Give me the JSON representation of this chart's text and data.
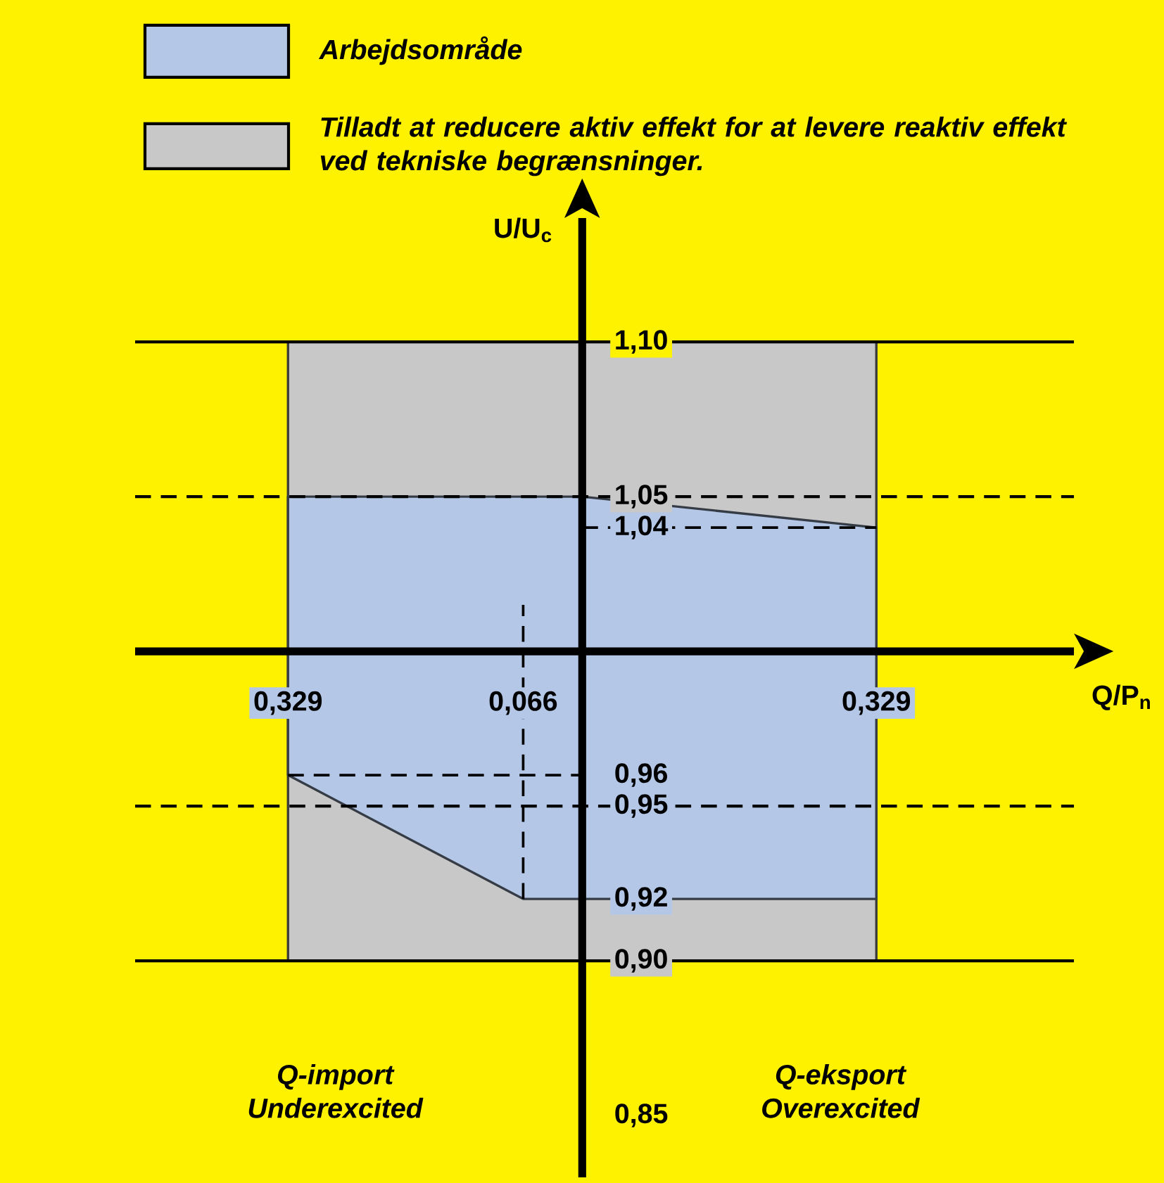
{
  "chart_data": {
    "type": "area",
    "xlabel": "Q/P$_{n}$",
    "ylabel": "U/U$_{c}$",
    "xlim": [
      -0.5,
      0.55
    ],
    "ylim": [
      0.83,
      1.14
    ],
    "xticks": [
      {
        "value": -0.329,
        "label": "0,329"
      },
      {
        "value": -0.066,
        "label": "0,066"
      },
      {
        "value": 0.329,
        "label": "0,329"
      }
    ],
    "yticks": [
      {
        "value": 0.85,
        "label": "0,85"
      },
      {
        "value": 0.9,
        "label": "0,90"
      },
      {
        "value": 0.92,
        "label": "0,92"
      },
      {
        "value": 0.95,
        "label": "0,95"
      },
      {
        "value": 0.96,
        "label": "0,96"
      },
      {
        "value": 1.04,
        "label": "1,04"
      },
      {
        "value": 1.05,
        "label": "1,05"
      },
      {
        "value": 1.1,
        "label": "1,10"
      }
    ],
    "series": [
      {
        "name": "Arbejdsområde",
        "color": "#b4c7e7",
        "x": [
          -0.329,
          0,
          0.329,
          0.329,
          -0.066,
          -0.329
        ],
        "values": [
          1.05,
          1.05,
          1.04,
          0.92,
          0.92,
          0.96
        ]
      },
      {
        "name": "Tilladt at reducere aktiv effekt for at levere reaktiv effekt ved tekniske begrænsninger.",
        "color": "#c8c8c8",
        "x": [
          -0.329,
          0.329,
          0.329,
          -0.329
        ],
        "values": [
          1.1,
          1.1,
          0.9,
          0.9
        ]
      },
      {
        "type": "line",
        "color": "#000000",
        "line_style": "dashed",
        "x": [
          0,
          0.329
        ],
        "values": [
          1.04,
          1.04
        ]
      },
      {
        "type": "line",
        "color": "#000000",
        "line_style": "dashed",
        "x": [
          -0.329,
          0
        ],
        "values": [
          0.96,
          0.96
        ]
      },
      {
        "type": "line",
        "color": "#000000",
        "line_style": "dashed",
        "x": [
          -0.066,
          -0.066
        ],
        "values": [
          0.92,
          1.015
        ]
      }
    ],
    "ref_lines": [
      {
        "axis": "y",
        "value": 1.1,
        "color": "#000000",
        "line_style": "solid"
      },
      {
        "axis": "y",
        "value": 1.05,
        "color": "#000000",
        "line_style": "dashed"
      },
      {
        "axis": "y",
        "value": 1.0,
        "color": "#000000",
        "line_style": "solid"
      },
      {
        "axis": "y",
        "value": 0.95,
        "color": "#000000",
        "line_style": "dashed"
      },
      {
        "axis": "y",
        "value": 0.9,
        "color": "#000000",
        "line_style": "solid"
      }
    ],
    "annotations": [
      "Q-import Underexcited",
      "Q-eksport Overexcited"
    ],
    "legend": "top",
    "marker": "none"
  }
}
